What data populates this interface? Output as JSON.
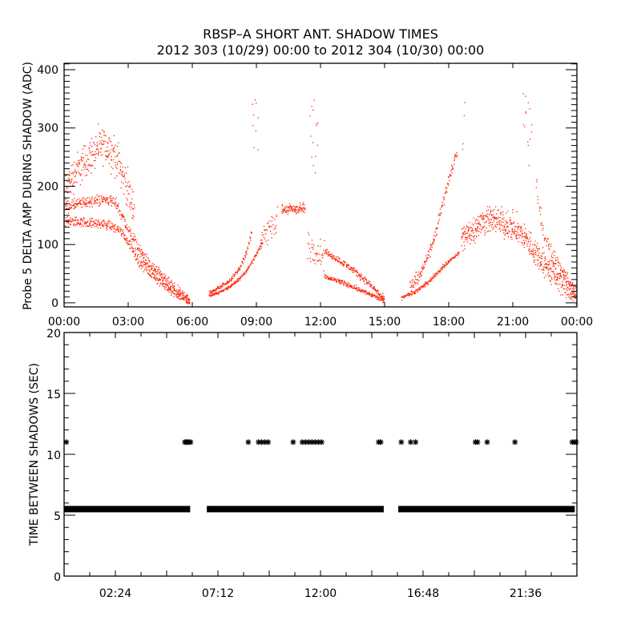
{
  "title_line1": "RBSP–A SHORT ANT. SHADOW TIMES",
  "title_line2": "2012 303 (10/29) 00:00 to 2012 304 (10/30) 00:00",
  "colors": {
    "points": "#ff2000",
    "axes": "#000000",
    "markers": "#000000",
    "background": "#ffffff"
  },
  "chart_data": [
    {
      "type": "scatter",
      "title": "RBSP–A SHORT ANT. SHADOW TIMES",
      "xlabel": "",
      "ylabel": "Probe 5 DELTA AMP DURING SHADOW (ADC)",
      "xlim_hours": [
        0,
        24
      ],
      "ylim": [
        -7,
        411
      ],
      "xticks": [
        "00:00",
        "03:00",
        "06:00",
        "09:00",
        "12:00",
        "15:00",
        "18:00",
        "21:00",
        "00:00"
      ],
      "xtick_hours": [
        0,
        3,
        6,
        9,
        12,
        15,
        18,
        21,
        24
      ],
      "yticks": [
        0,
        100,
        200,
        300,
        400
      ],
      "grid": false,
      "note": "dense point clouds; each branch gives [hour, center value] with spread",
      "branches": [
        {
          "spread": 45,
          "density": 5,
          "points": [
            [
              0,
              195
            ],
            [
              0.5,
              225
            ],
            [
              1,
              245
            ],
            [
              1.5,
              265
            ],
            [
              2,
              270
            ],
            [
              2.5,
              245
            ],
            [
              2.9,
              200
            ],
            [
              3.3,
              160
            ]
          ]
        },
        {
          "spread": 14,
          "density": 4,
          "points": [
            [
              0,
              165
            ],
            [
              0.6,
              170
            ],
            [
              1.2,
              175
            ],
            [
              2,
              178
            ],
            [
              2.4,
              172
            ],
            [
              2.7,
              150
            ],
            [
              3,
              125
            ],
            [
              3.5,
              92
            ],
            [
              4,
              65
            ],
            [
              4.5,
              48
            ],
            [
              5,
              30
            ],
            [
              5.5,
              14
            ],
            [
              5.9,
              4
            ]
          ]
        },
        {
          "spread": 12,
          "density": 4,
          "points": [
            [
              0,
              140
            ],
            [
              0.6,
              140
            ],
            [
              1.2,
              138
            ],
            [
              2,
              135
            ],
            [
              2.6,
              125
            ],
            [
              3,
              105
            ],
            [
              3.5,
              72
            ],
            [
              4,
              52
            ],
            [
              4.5,
              36
            ],
            [
              5,
              22
            ],
            [
              5.5,
              10
            ],
            [
              5.9,
              3
            ]
          ]
        },
        {
          "spread": 4,
          "density": 4,
          "points": [
            [
              6.8,
              12
            ],
            [
              7.3,
              20
            ],
            [
              7.8,
              30
            ],
            [
              8.2,
              42
            ],
            [
              8.6,
              60
            ],
            [
              8.9,
              80
            ],
            [
              9.3,
              105
            ]
          ]
        },
        {
          "spread": 5,
          "density": 4,
          "points": [
            [
              6.8,
              18
            ],
            [
              7.3,
              28
            ],
            [
              7.8,
              42
            ],
            [
              8.2,
              60
            ],
            [
              8.5,
              85
            ],
            [
              8.8,
              130
            ]
          ]
        },
        {
          "spread": 120,
          "density": 2,
          "points": [
            [
              8.8,
              300
            ],
            [
              9.1,
              300
            ]
          ]
        },
        {
          "spread": 30,
          "density": 3,
          "points": [
            [
              9.2,
              110
            ],
            [
              9.6,
              130
            ],
            [
              10,
              145
            ]
          ]
        },
        {
          "spread": 14,
          "density": 5,
          "points": [
            [
              10.2,
              160
            ],
            [
              10.7,
              162
            ],
            [
              11.3,
              162
            ]
          ]
        },
        {
          "spread": 120,
          "density": 2,
          "points": [
            [
              11.5,
              290
            ],
            [
              11.9,
              290
            ]
          ]
        },
        {
          "spread": 40,
          "density": 3,
          "points": [
            [
              11.4,
              100
            ],
            [
              11.9,
              90
            ],
            [
              12.2,
              80
            ]
          ]
        },
        {
          "spread": 8,
          "density": 4,
          "points": [
            [
              12.2,
              88
            ],
            [
              12.8,
              75
            ],
            [
              13.4,
              60
            ],
            [
              14,
              42
            ],
            [
              14.5,
              25
            ],
            [
              15,
              5
            ]
          ]
        },
        {
          "spread": 6,
          "density": 4,
          "points": [
            [
              12.2,
              45
            ],
            [
              12.8,
              38
            ],
            [
              13.4,
              30
            ],
            [
              14,
              20
            ],
            [
              14.5,
              12
            ],
            [
              15,
              3
            ]
          ]
        },
        {
          "spread": 5,
          "density": 4,
          "points": [
            [
              15.8,
              10
            ],
            [
              16.4,
              20
            ],
            [
              17,
              35
            ],
            [
              17.5,
              55
            ],
            [
              18,
              72
            ],
            [
              18.5,
              88
            ]
          ]
        },
        {
          "spread": 15,
          "density": 4,
          "points": [
            [
              16.2,
              30
            ],
            [
              16.8,
              60
            ],
            [
              17.3,
              110
            ],
            [
              17.7,
              170
            ],
            [
              18,
              215
            ],
            [
              18.4,
              265
            ]
          ]
        },
        {
          "spread": 110,
          "density": 1,
          "points": [
            [
              18.6,
              300
            ],
            [
              18.8,
              320
            ]
          ]
        },
        {
          "spread": 35,
          "density": 6,
          "points": [
            [
              18.6,
              110
            ],
            [
              19.2,
              130
            ],
            [
              19.8,
              145
            ],
            [
              20.4,
              140
            ],
            [
              21,
              130
            ],
            [
              21.5,
              115
            ],
            [
              22,
              90
            ],
            [
              22.5,
              65
            ],
            [
              23,
              45
            ],
            [
              23.5,
              30
            ],
            [
              24,
              5
            ]
          ]
        },
        {
          "spread": 110,
          "density": 2,
          "points": [
            [
              21.5,
              320
            ],
            [
              21.9,
              320
            ]
          ]
        },
        {
          "spread": 18,
          "density": 3,
          "points": [
            [
              22.1,
              200
            ],
            [
              22.4,
              120
            ],
            [
              22.8,
              85
            ],
            [
              23.3,
              55
            ],
            [
              23.7,
              35
            ],
            [
              24,
              8
            ]
          ]
        }
      ]
    },
    {
      "type": "scatter",
      "xlabel": "",
      "ylabel": "TIME BETWEEN SHADOWS (SEC)",
      "xlim_hours": [
        0,
        24
      ],
      "ylim": [
        0,
        20
      ],
      "xticks": [
        "02:24",
        "07:12",
        "12:00",
        "16:48",
        "21:36"
      ],
      "xtick_hours": [
        2.4,
        7.2,
        12,
        16.8,
        21.6
      ],
      "yticks": [
        0,
        5,
        10,
        15,
        20
      ],
      "grid": false,
      "marker": "asterisk",
      "bands_at_5_5_sec": [
        [
          0,
          5.9
        ],
        [
          6.68,
          14.96
        ],
        [
          15.64,
          23.9
        ]
      ],
      "points_at_11_sec_hours": [
        0.1,
        5.65,
        5.72,
        5.78,
        5.85,
        5.92,
        8.62,
        9.1,
        9.25,
        9.4,
        9.55,
        10.72,
        11.15,
        11.3,
        11.45,
        11.6,
        11.75,
        11.9,
        12.05,
        14.72,
        14.82,
        15.78,
        16.22,
        16.45,
        19.25,
        19.35,
        19.8,
        21.1,
        23.78,
        23.88,
        23.96
      ]
    }
  ]
}
